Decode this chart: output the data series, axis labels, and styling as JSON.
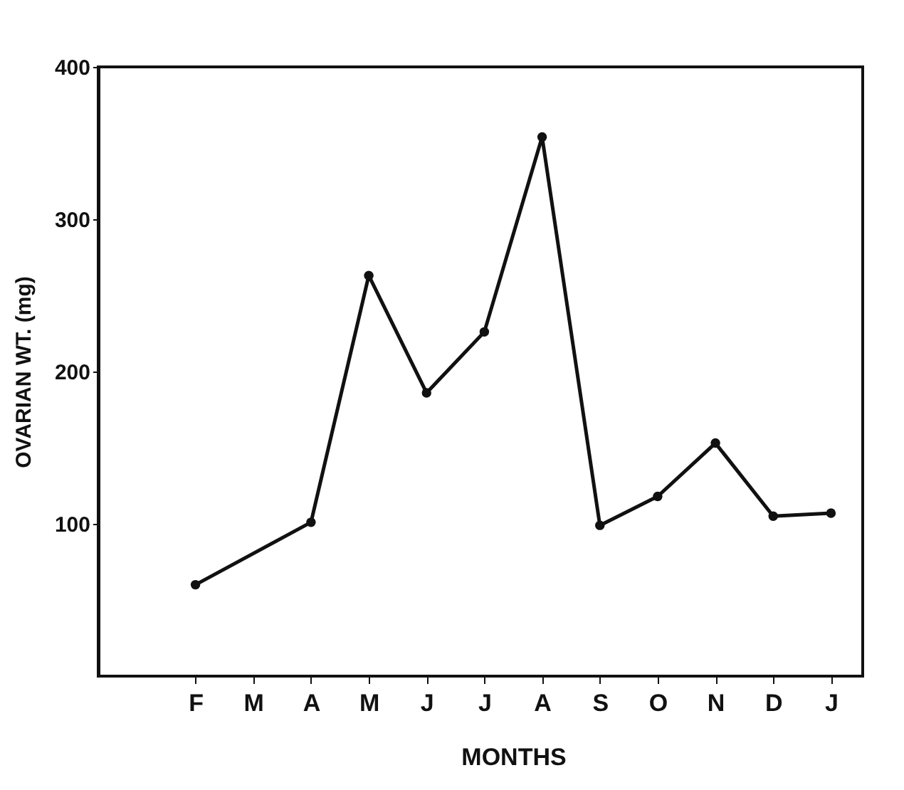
{
  "chart_data": {
    "type": "line",
    "xlabel": "MONTHS",
    "ylabel": "OVARIAN  WT. (mg)",
    "categories": [
      "F",
      "M",
      "A",
      "M",
      "J",
      "J",
      "A",
      "S",
      "O",
      "N",
      "D",
      "J"
    ],
    "series": [
      {
        "color": "#111111",
        "values": [
          60,
          null,
          101,
          263,
          186,
          226,
          354,
          99,
          118,
          153,
          105,
          107
        ]
      }
    ],
    "ylim": [
      0,
      400
    ],
    "yticks": [
      100,
      200,
      300,
      400
    ],
    "grid": false,
    "marker": "circle",
    "line_style": "solid"
  }
}
